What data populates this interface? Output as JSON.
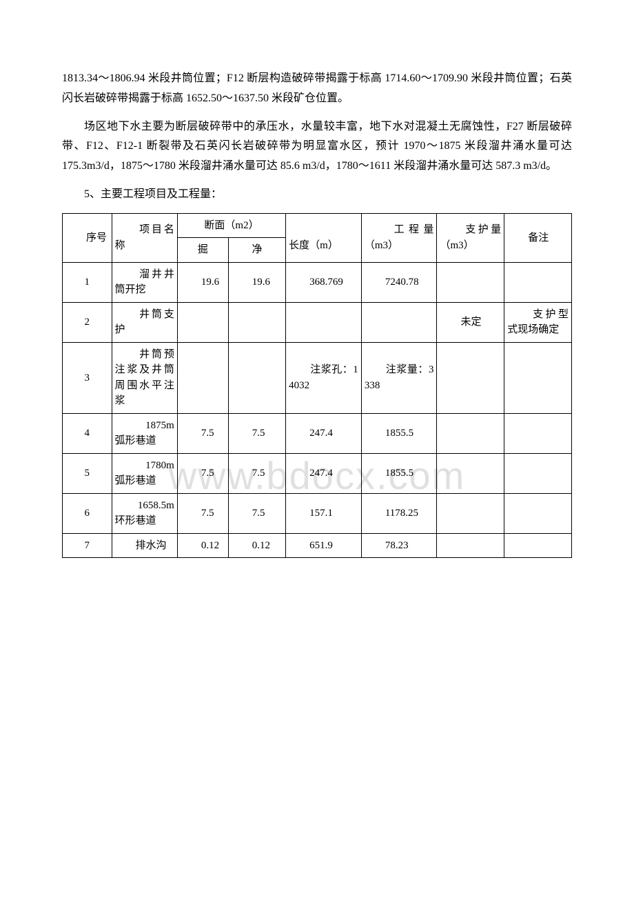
{
  "watermark": "www.bdocx.com",
  "paragraphs": {
    "p1": "1813.34～1806.94 米段井筒位置；F12 断层构造破碎带揭露于标高 1714.60～1709.90 米段井筒位置；石英闪长岩破碎带揭露于标高 1652.50～1637.50 米段矿仓位置。",
    "p2": "场区地下水主要为断层破碎带中的承压水，水量较丰富，地下水对混凝土无腐蚀性，F27 断层破碎带、F12、F12-1 断裂带及石英闪长岩破碎带为明显富水区，预计 1970～1875 米段溜井涌水量可达 175.3m3/d，1875～1780 米段溜井涌水量可达 85.6 m3/d，1780～1611 米段溜井涌水量可达 587.3 m3/d。",
    "p3": "5、主要工程项目及工程量："
  },
  "table": {
    "header": {
      "seq": "序号",
      "name": "项目名称",
      "section": "断面（m2）",
      "dig": "掘",
      "net": "净",
      "length": "长度（m）",
      "volume": "工程量（m3）",
      "support": "支护量（m3）",
      "remark": "备注"
    },
    "rows": [
      {
        "seq": "1",
        "name": "溜井井筒开挖",
        "dig": "19.6",
        "net": "19.6",
        "length": "368.769",
        "volume": "7240.78",
        "support": "",
        "remark": ""
      },
      {
        "seq": "2",
        "name": "井筒支护",
        "dig": "",
        "net": "",
        "length": "",
        "volume": "",
        "support": "未定",
        "remark": "支护型式现场确定"
      },
      {
        "seq": "3",
        "name": "井筒预注浆及井筒周围水平注浆",
        "dig": "",
        "net": "",
        "length": "注浆孔：14032",
        "volume": "注浆量：3338",
        "support": "",
        "remark": ""
      },
      {
        "seq": "4",
        "name": "1875m 弧形巷道",
        "dig": "7.5",
        "net": "7.5",
        "length": "247.4",
        "volume": "1855.5",
        "support": "",
        "remark": ""
      },
      {
        "seq": "5",
        "name": "1780m 弧形巷道",
        "dig": "7.5",
        "net": "7.5",
        "length": "247.4",
        "volume": "1855.5",
        "support": "",
        "remark": ""
      },
      {
        "seq": "6",
        "name": "1658.5m 环形巷道",
        "dig": "7.5",
        "net": "7.5",
        "length": "157.1",
        "volume": "1178.25",
        "support": "",
        "remark": ""
      },
      {
        "seq": "7",
        "name": "排水沟",
        "dig": "0.12",
        "net": "0.12",
        "length": "651.9",
        "volume": "78.23",
        "support": "",
        "remark": ""
      }
    ],
    "column_widths": {
      "seq": "60",
      "name": "80",
      "dig": "60",
      "net": "70",
      "length": "90",
      "volume": "90",
      "support": "80",
      "remark": "80"
    }
  }
}
